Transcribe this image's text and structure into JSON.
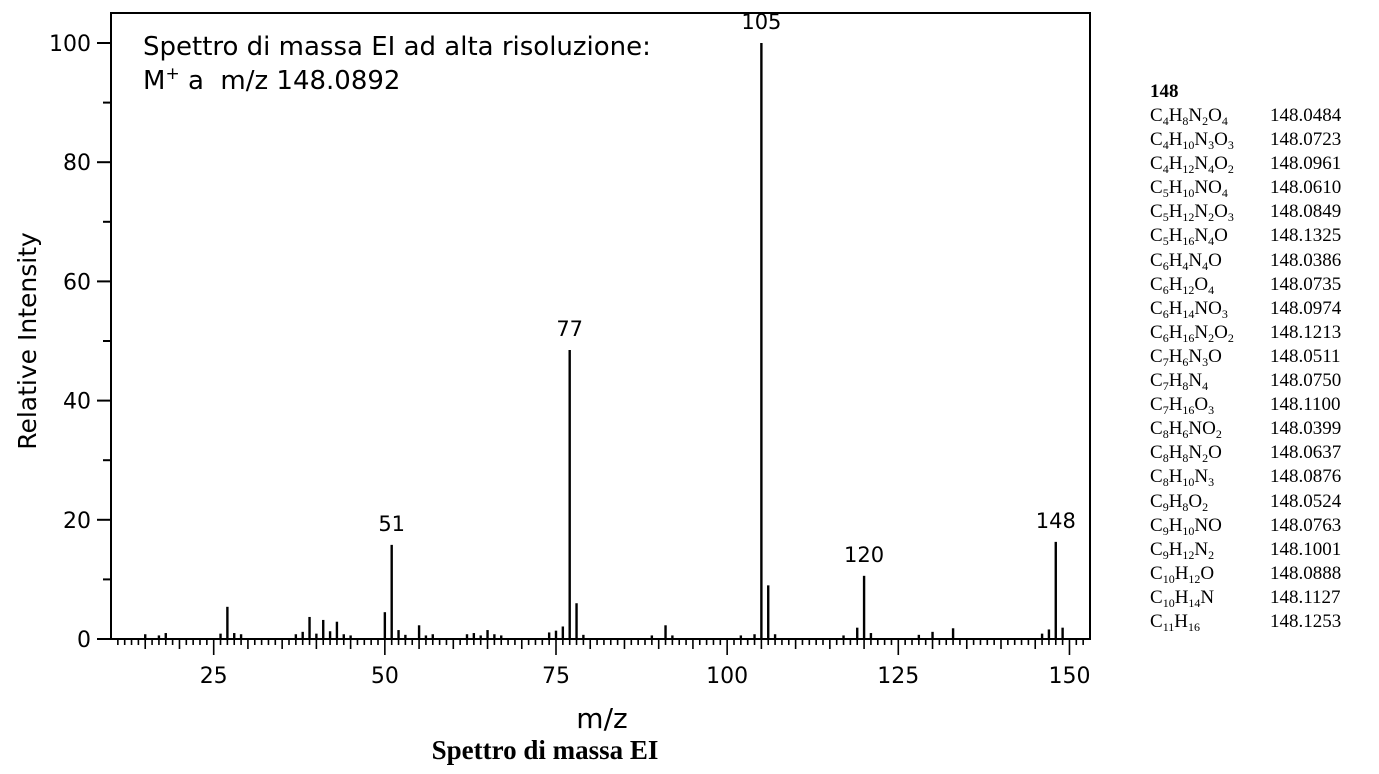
{
  "chart_data": {
    "type": "bar",
    "title": "Spettro di massa EI ad alta risoluzione:",
    "subtitle_prefix": "M",
    "subtitle_sup": "+",
    "subtitle_rest": " a  m/z 148.0892",
    "xlabel": "m/z",
    "ylabel": "Relative Intensity",
    "caption": "Spettro di massa EI",
    "xlim": [
      10,
      153
    ],
    "ylim": [
      0,
      100
    ],
    "x_ticks": [
      25,
      50,
      75,
      100,
      125,
      150
    ],
    "y_ticks": [
      0,
      20,
      40,
      60,
      80,
      100
    ],
    "grid": false,
    "peaks": [
      {
        "mz": 15,
        "intensity": 0.8
      },
      {
        "mz": 17,
        "intensity": 0.6
      },
      {
        "mz": 18,
        "intensity": 1.0
      },
      {
        "mz": 26,
        "intensity": 0.9
      },
      {
        "mz": 27,
        "intensity": 5.4
      },
      {
        "mz": 28,
        "intensity": 1.0
      },
      {
        "mz": 29,
        "intensity": 0.8
      },
      {
        "mz": 37,
        "intensity": 0.8
      },
      {
        "mz": 38,
        "intensity": 1.2
      },
      {
        "mz": 39,
        "intensity": 3.7
      },
      {
        "mz": 40,
        "intensity": 0.9
      },
      {
        "mz": 41,
        "intensity": 3.2
      },
      {
        "mz": 42,
        "intensity": 1.3
      },
      {
        "mz": 43,
        "intensity": 2.9
      },
      {
        "mz": 44,
        "intensity": 0.8
      },
      {
        "mz": 45,
        "intensity": 0.6
      },
      {
        "mz": 50,
        "intensity": 4.5
      },
      {
        "mz": 51,
        "intensity": 15.8
      },
      {
        "mz": 52,
        "intensity": 1.5
      },
      {
        "mz": 53,
        "intensity": 0.7
      },
      {
        "mz": 55,
        "intensity": 2.3
      },
      {
        "mz": 56,
        "intensity": 0.6
      },
      {
        "mz": 57,
        "intensity": 0.8
      },
      {
        "mz": 62,
        "intensity": 0.8
      },
      {
        "mz": 63,
        "intensity": 1.0
      },
      {
        "mz": 64,
        "intensity": 0.6
      },
      {
        "mz": 65,
        "intensity": 1.5
      },
      {
        "mz": 66,
        "intensity": 0.8
      },
      {
        "mz": 67,
        "intensity": 0.6
      },
      {
        "mz": 74,
        "intensity": 1.1
      },
      {
        "mz": 75,
        "intensity": 1.4
      },
      {
        "mz": 76,
        "intensity": 2.1
      },
      {
        "mz": 77,
        "intensity": 48.5
      },
      {
        "mz": 78,
        "intensity": 6.0
      },
      {
        "mz": 79,
        "intensity": 0.7
      },
      {
        "mz": 89,
        "intensity": 0.6
      },
      {
        "mz": 91,
        "intensity": 2.3
      },
      {
        "mz": 92,
        "intensity": 0.6
      },
      {
        "mz": 102,
        "intensity": 0.6
      },
      {
        "mz": 104,
        "intensity": 0.8
      },
      {
        "mz": 105,
        "intensity": 100
      },
      {
        "mz": 106,
        "intensity": 9.0
      },
      {
        "mz": 107,
        "intensity": 0.8
      },
      {
        "mz": 117,
        "intensity": 0.6
      },
      {
        "mz": 119,
        "intensity": 1.9
      },
      {
        "mz": 120,
        "intensity": 10.6
      },
      {
        "mz": 121,
        "intensity": 1.0
      },
      {
        "mz": 128,
        "intensity": 0.7
      },
      {
        "mz": 130,
        "intensity": 1.2
      },
      {
        "mz": 133,
        "intensity": 1.8
      },
      {
        "mz": 146,
        "intensity": 0.9
      },
      {
        "mz": 147,
        "intensity": 1.6
      },
      {
        "mz": 148,
        "intensity": 16.3
      },
      {
        "mz": 149,
        "intensity": 1.9
      }
    ],
    "peak_labels": [
      {
        "mz": 51,
        "intensity": 15.8,
        "label": "51"
      },
      {
        "mz": 77,
        "intensity": 48.5,
        "label": "77"
      },
      {
        "mz": 105,
        "intensity": 100,
        "label": "105"
      },
      {
        "mz": 120,
        "intensity": 10.6,
        "label": "120"
      },
      {
        "mz": 148,
        "intensity": 16.3,
        "label": "148"
      }
    ]
  },
  "formula_table": {
    "heading": "148",
    "rows": [
      {
        "formula": [
          [
            "C",
            "4"
          ],
          [
            "H",
            "8"
          ],
          [
            "N",
            "2"
          ],
          [
            "O",
            "4"
          ]
        ],
        "mass": "148.0484"
      },
      {
        "formula": [
          [
            "C",
            "4"
          ],
          [
            "H",
            "10"
          ],
          [
            "N",
            "3"
          ],
          [
            "O",
            "3"
          ]
        ],
        "mass": "148.0723"
      },
      {
        "formula": [
          [
            "C",
            "4"
          ],
          [
            "H",
            "12"
          ],
          [
            "N",
            "4"
          ],
          [
            "O",
            "2"
          ]
        ],
        "mass": "148.0961"
      },
      {
        "formula": [
          [
            "C",
            "5"
          ],
          [
            "H",
            "10"
          ],
          [
            "N",
            ""
          ],
          [
            "O",
            "4"
          ]
        ],
        "mass": "148.0610"
      },
      {
        "formula": [
          [
            "C",
            "5"
          ],
          [
            "H",
            "12"
          ],
          [
            "N",
            "2"
          ],
          [
            "O",
            "3"
          ]
        ],
        "mass": "148.0849"
      },
      {
        "formula": [
          [
            "C",
            "5"
          ],
          [
            "H",
            "16"
          ],
          [
            "N",
            "4"
          ],
          [
            "O",
            ""
          ]
        ],
        "mass": "148.1325"
      },
      {
        "formula": [
          [
            "C",
            "6"
          ],
          [
            "H",
            "4"
          ],
          [
            "N",
            "4"
          ],
          [
            "O",
            ""
          ]
        ],
        "mass": "148.0386"
      },
      {
        "formula": [
          [
            "C",
            "6"
          ],
          [
            "H",
            "12"
          ],
          [
            "O",
            "4"
          ]
        ],
        "mass": "148.0735"
      },
      {
        "formula": [
          [
            "C",
            "6"
          ],
          [
            "H",
            "14"
          ],
          [
            "N",
            ""
          ],
          [
            "O",
            "3"
          ]
        ],
        "mass": "148.0974"
      },
      {
        "formula": [
          [
            "C",
            "6"
          ],
          [
            "H",
            "16"
          ],
          [
            "N",
            "2"
          ],
          [
            "O",
            "2"
          ]
        ],
        "mass": "148.1213"
      },
      {
        "formula": [
          [
            "C",
            "7"
          ],
          [
            "H",
            "6"
          ],
          [
            "N",
            "3"
          ],
          [
            "O",
            ""
          ]
        ],
        "mass": "148.0511"
      },
      {
        "formula": [
          [
            "C",
            "7"
          ],
          [
            "H",
            "8"
          ],
          [
            "N",
            "4"
          ]
        ],
        "mass": "148.0750"
      },
      {
        "formula": [
          [
            "C",
            "7"
          ],
          [
            "H",
            "16"
          ],
          [
            "O",
            "3"
          ]
        ],
        "mass": "148.1100"
      },
      {
        "formula": [
          [
            "C",
            "8"
          ],
          [
            "H",
            "6"
          ],
          [
            "N",
            ""
          ],
          [
            "O",
            "2"
          ]
        ],
        "mass": "148.0399"
      },
      {
        "formula": [
          [
            "C",
            "8"
          ],
          [
            "H",
            "8"
          ],
          [
            "N",
            "2"
          ],
          [
            "O",
            ""
          ]
        ],
        "mass": "148.0637"
      },
      {
        "formula": [
          [
            "C",
            "8"
          ],
          [
            "H",
            "10"
          ],
          [
            "N",
            "3"
          ]
        ],
        "mass": "148.0876"
      },
      {
        "formula": [
          [
            "C",
            "9"
          ],
          [
            "H",
            "8"
          ],
          [
            "O",
            "2"
          ]
        ],
        "mass": "148.0524"
      },
      {
        "formula": [
          [
            "C",
            "9"
          ],
          [
            "H",
            "10"
          ],
          [
            "N",
            ""
          ],
          [
            "O",
            ""
          ]
        ],
        "mass": "148.0763"
      },
      {
        "formula": [
          [
            "C",
            "9"
          ],
          [
            "H",
            "12"
          ],
          [
            "N",
            "2"
          ]
        ],
        "mass": "148.1001"
      },
      {
        "formula": [
          [
            "C",
            "10"
          ],
          [
            "H",
            "12"
          ],
          [
            "O",
            ""
          ]
        ],
        "mass": "148.0888"
      },
      {
        "formula": [
          [
            "C",
            "10"
          ],
          [
            "H",
            "14"
          ],
          [
            "N",
            ""
          ]
        ],
        "mass": "148.1127"
      },
      {
        "formula": [
          [
            "C",
            "11"
          ],
          [
            "H",
            "16"
          ]
        ],
        "mass": "148.1253"
      }
    ]
  }
}
